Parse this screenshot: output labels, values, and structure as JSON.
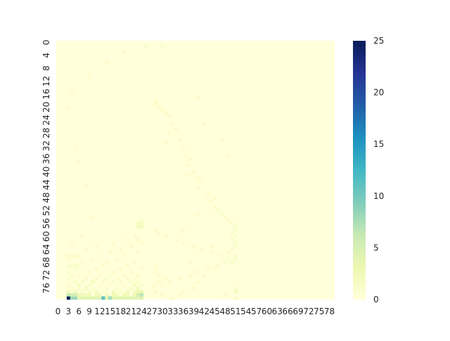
{
  "chart_data": {
    "type": "heatmap",
    "title": "",
    "xlabel": "",
    "ylabel": "",
    "rows": 80,
    "cols": 80,
    "x_tick_labels": [
      "0",
      "3",
      "6",
      "9",
      "12",
      "15",
      "18",
      "21",
      "24",
      "27",
      "30",
      "33",
      "36",
      "39",
      "42",
      "45",
      "48",
      "51",
      "54",
      "57",
      "60",
      "63",
      "66",
      "69",
      "72",
      "75",
      "78"
    ],
    "y_tick_labels": [
      "0",
      "4",
      "8",
      "12",
      "16",
      "20",
      "24",
      "28",
      "32",
      "36",
      "40",
      "44",
      "48",
      "52",
      "56",
      "60",
      "64",
      "68",
      "72",
      "76"
    ],
    "colorbar": {
      "min": 0,
      "max": 25,
      "ticks": [
        "0",
        "5",
        "10",
        "15",
        "20",
        "25"
      ]
    },
    "colorscale": "YlGnBu",
    "background_value": 0,
    "cells": [
      [
        79,
        3,
        25
      ],
      [
        79,
        4,
        8
      ],
      [
        79,
        5,
        8
      ],
      [
        79,
        6,
        4
      ],
      [
        79,
        7,
        4
      ],
      [
        79,
        8,
        4
      ],
      [
        79,
        9,
        4
      ],
      [
        79,
        10,
        4
      ],
      [
        79,
        11,
        4
      ],
      [
        79,
        12,
        4
      ],
      [
        79,
        13,
        11
      ],
      [
        79,
        14,
        4
      ],
      [
        79,
        15,
        8
      ],
      [
        79,
        16,
        4
      ],
      [
        79,
        17,
        4
      ],
      [
        79,
        18,
        4
      ],
      [
        79,
        19,
        4
      ],
      [
        79,
        20,
        4
      ],
      [
        79,
        21,
        4
      ],
      [
        79,
        22,
        4
      ],
      [
        79,
        23,
        4
      ],
      [
        79,
        24,
        4
      ],
      [
        78,
        3,
        6
      ],
      [
        78,
        4,
        5
      ],
      [
        78,
        5,
        5
      ],
      [
        78,
        6,
        3
      ],
      [
        78,
        7,
        2
      ],
      [
        78,
        8,
        2
      ],
      [
        78,
        9,
        3
      ],
      [
        78,
        11,
        2
      ],
      [
        78,
        12,
        2
      ],
      [
        78,
        14,
        2
      ],
      [
        78,
        16,
        3
      ],
      [
        78,
        17,
        2
      ],
      [
        78,
        19,
        3
      ],
      [
        78,
        20,
        2
      ],
      [
        78,
        22,
        3
      ],
      [
        78,
        23,
        5
      ],
      [
        78,
        24,
        7
      ],
      [
        77,
        3,
        2
      ],
      [
        77,
        5,
        2
      ],
      [
        77,
        7,
        1
      ],
      [
        77,
        9,
        1
      ],
      [
        77,
        11,
        2
      ],
      [
        77,
        13,
        1
      ],
      [
        77,
        16,
        2
      ],
      [
        77,
        18,
        1
      ],
      [
        77,
        20,
        2
      ],
      [
        77,
        22,
        2
      ],
      [
        77,
        23,
        3
      ],
      [
        77,
        24,
        3
      ],
      [
        76,
        4,
        1
      ],
      [
        76,
        6,
        1
      ],
      [
        76,
        8,
        2
      ],
      [
        76,
        10,
        1
      ],
      [
        76,
        14,
        1
      ],
      [
        76,
        17,
        1
      ],
      [
        76,
        21,
        1
      ],
      [
        76,
        23,
        2
      ],
      [
        75,
        3,
        1
      ],
      [
        75,
        6,
        2
      ],
      [
        75,
        9,
        1
      ],
      [
        75,
        12,
        1
      ],
      [
        75,
        15,
        1
      ],
      [
        75,
        19,
        1
      ],
      [
        75,
        22,
        2
      ],
      [
        75,
        24,
        1
      ],
      [
        74,
        5,
        1
      ],
      [
        74,
        7,
        1
      ],
      [
        74,
        10,
        2
      ],
      [
        74,
        13,
        1
      ],
      [
        74,
        16,
        1
      ],
      [
        74,
        18,
        1
      ],
      [
        74,
        21,
        1
      ],
      [
        74,
        23,
        1
      ],
      [
        73,
        3,
        1
      ],
      [
        73,
        8,
        1
      ],
      [
        73,
        11,
        1
      ],
      [
        73,
        14,
        1
      ],
      [
        73,
        17,
        1
      ],
      [
        73,
        20,
        1
      ],
      [
        73,
        22,
        1
      ],
      [
        72,
        4,
        1
      ],
      [
        72,
        6,
        1
      ],
      [
        72,
        12,
        1
      ],
      [
        72,
        15,
        1
      ],
      [
        72,
        19,
        1
      ],
      [
        72,
        23,
        1
      ],
      [
        71,
        3,
        1
      ],
      [
        71,
        9,
        1
      ],
      [
        71,
        16,
        1
      ],
      [
        71,
        21,
        1
      ],
      [
        70,
        5,
        1
      ],
      [
        70,
        11,
        1
      ],
      [
        70,
        18,
        1
      ],
      [
        70,
        24,
        1
      ],
      [
        69,
        3,
        1
      ],
      [
        69,
        4,
        1
      ],
      [
        69,
        5,
        1
      ],
      [
        69,
        6,
        1
      ],
      [
        69,
        13,
        1
      ],
      [
        69,
        20,
        1
      ],
      [
        68,
        7,
        1
      ],
      [
        68,
        14,
        1
      ],
      [
        68,
        22,
        1
      ],
      [
        67,
        3,
        1
      ],
      [
        67,
        10,
        1
      ],
      [
        67,
        17,
        1
      ],
      [
        66,
        3,
        1
      ],
      [
        66,
        4,
        1
      ],
      [
        66,
        5,
        1
      ],
      [
        66,
        6,
        1
      ],
      [
        66,
        12,
        1
      ],
      [
        66,
        19,
        1
      ],
      [
        65,
        15,
        1
      ],
      [
        65,
        23,
        1
      ],
      [
        64,
        8,
        1
      ],
      [
        64,
        18,
        1
      ],
      [
        63,
        11,
        1
      ],
      [
        63,
        21,
        1
      ],
      [
        62,
        4,
        1
      ],
      [
        62,
        16,
        1
      ],
      [
        62,
        24,
        1
      ],
      [
        61,
        20,
        1
      ],
      [
        61,
        23,
        1
      ],
      [
        60,
        7,
        1
      ],
      [
        60,
        22,
        1
      ],
      [
        57,
        23,
        2
      ],
      [
        57,
        24,
        2
      ],
      [
        56,
        23,
        2
      ],
      [
        56,
        24,
        2
      ],
      [
        55,
        24,
        1
      ],
      [
        54,
        10,
        1
      ],
      [
        44,
        8,
        1
      ],
      [
        37,
        6,
        1
      ],
      [
        33,
        5,
        1
      ],
      [
        24,
        4,
        1
      ],
      [
        20,
        3,
        1
      ],
      [
        16,
        4,
        1
      ],
      [
        10,
        9,
        1
      ],
      [
        6,
        14,
        1
      ],
      [
        3,
        19,
        1
      ],
      [
        1,
        25,
        1
      ],
      [
        1,
        30,
        1
      ],
      [
        18,
        28,
        1
      ],
      [
        19,
        28,
        1
      ],
      [
        20,
        29,
        1
      ],
      [
        21,
        30,
        1
      ],
      [
        22,
        31,
        1
      ],
      [
        23,
        32,
        1
      ],
      [
        25,
        33,
        1
      ],
      [
        27,
        34,
        1
      ],
      [
        28,
        32,
        1
      ],
      [
        30,
        35,
        1
      ],
      [
        31,
        31,
        1
      ],
      [
        33,
        36,
        1
      ],
      [
        35,
        37,
        1
      ],
      [
        36,
        38,
        1
      ],
      [
        38,
        37,
        1
      ],
      [
        40,
        39,
        1
      ],
      [
        42,
        40,
        1
      ],
      [
        43,
        41,
        1
      ],
      [
        45,
        40,
        1
      ],
      [
        47,
        43,
        1
      ],
      [
        49,
        44,
        1
      ],
      [
        51,
        45,
        1
      ],
      [
        52,
        46,
        1
      ],
      [
        53,
        47,
        1
      ],
      [
        54,
        48,
        1
      ],
      [
        55,
        49,
        1
      ],
      [
        56,
        50,
        1
      ],
      [
        57,
        51,
        1
      ],
      [
        58,
        51,
        1
      ],
      [
        59,
        50,
        1
      ],
      [
        60,
        51,
        1
      ],
      [
        61,
        50,
        1
      ],
      [
        62,
        51,
        1
      ],
      [
        63,
        51,
        1
      ],
      [
        64,
        50,
        1
      ],
      [
        65,
        49,
        1
      ],
      [
        66,
        51,
        1
      ],
      [
        67,
        51,
        1
      ],
      [
        68,
        50,
        1
      ],
      [
        70,
        45,
        1
      ],
      [
        72,
        42,
        1
      ],
      [
        74,
        40,
        1
      ],
      [
        76,
        39,
        1
      ],
      [
        77,
        36,
        1
      ],
      [
        78,
        35,
        1
      ],
      [
        79,
        33,
        1
      ],
      [
        78,
        30,
        1
      ],
      [
        77,
        28,
        1
      ],
      [
        76,
        27,
        1
      ],
      [
        75,
        28,
        1
      ],
      [
        74,
        32,
        1
      ],
      [
        73,
        35,
        1
      ],
      [
        72,
        38,
        1
      ],
      [
        71,
        40,
        1
      ],
      [
        70,
        43,
        1
      ],
      [
        69,
        46,
        1
      ],
      [
        68,
        48,
        1
      ],
      [
        67,
        49,
        1
      ],
      [
        66,
        47,
        1
      ],
      [
        65,
        44,
        1
      ],
      [
        64,
        41,
        1
      ],
      [
        63,
        39,
        1
      ],
      [
        62,
        36,
        1
      ],
      [
        61,
        34,
        1
      ],
      [
        60,
        31,
        1
      ],
      [
        59,
        29,
        1
      ],
      [
        58,
        28,
        1
      ],
      [
        17,
        40,
        1
      ],
      [
        25,
        42,
        1
      ],
      [
        30,
        47,
        1
      ],
      [
        35,
        49,
        1
      ],
      [
        41,
        37,
        1
      ],
      [
        48,
        45,
        1
      ],
      [
        53,
        40,
        1
      ],
      [
        58,
        36,
        1
      ],
      [
        63,
        44,
        1
      ],
      [
        68,
        38,
        1
      ],
      [
        73,
        31,
        1
      ],
      [
        78,
        48,
        1
      ],
      [
        79,
        51,
        1
      ],
      [
        77,
        51,
        2
      ],
      [
        76,
        51,
        1
      ],
      [
        75,
        30,
        1
      ],
      [
        74,
        29,
        1
      ],
      [
        72,
        29,
        1
      ],
      [
        71,
        28,
        1
      ],
      [
        69,
        28,
        1
      ]
    ]
  }
}
